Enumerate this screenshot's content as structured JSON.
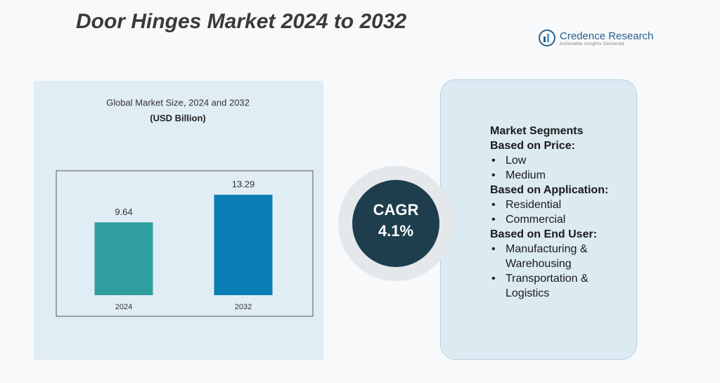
{
  "title": "Door Hinges Market 2024 to 2032",
  "logo": {
    "name": "Credence Research",
    "tagline": "Actionable Insights Delivered"
  },
  "chart_data": {
    "type": "bar",
    "title": "Global Market Size, 2024 and 2032",
    "subtitle": "(USD Billion)",
    "categories": [
      "2024",
      "2032"
    ],
    "values": [
      9.64,
      13.29
    ],
    "colors": [
      "#2e9e9e",
      "#0a7db5"
    ],
    "ylim": [
      0,
      16
    ]
  },
  "cagr": {
    "label": "CAGR",
    "value": "4.1%"
  },
  "segments": {
    "heading": "Market Segments",
    "groups": [
      {
        "title": "Based on Price:",
        "items": [
          "Low",
          "Medium"
        ]
      },
      {
        "title": "Based on Application:",
        "items": [
          "Residential",
          "Commercial"
        ]
      },
      {
        "title": "Based on End User:",
        "items": [
          "Manufacturing & Warehousing",
          "Transportation & Logistics"
        ]
      }
    ]
  }
}
